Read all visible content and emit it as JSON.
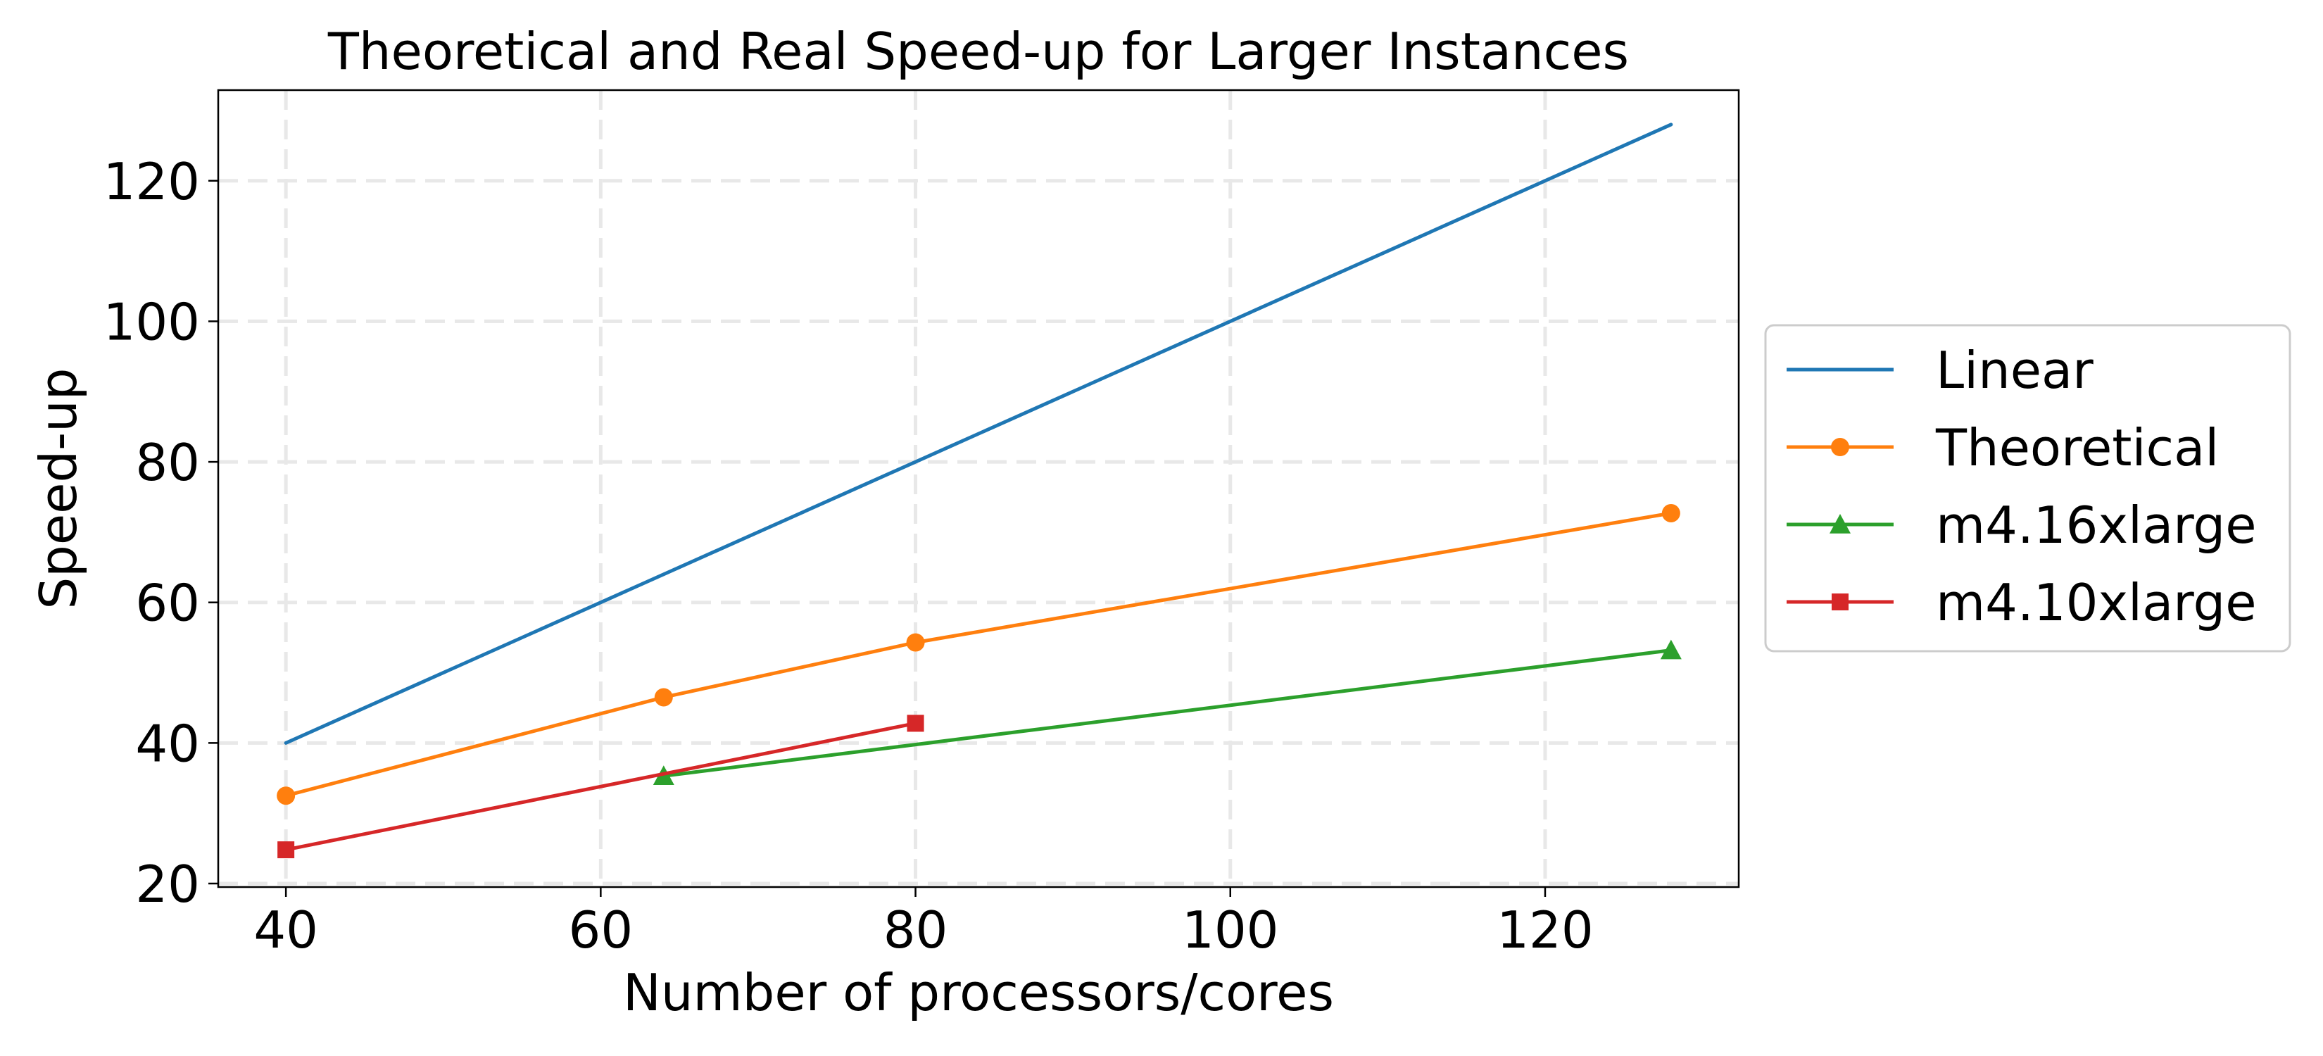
{
  "chart_data": {
    "type": "line",
    "title": "Theoretical and Real Speed-up for Larger Instances",
    "xlabel": "Number of processors/cores",
    "ylabel": "Speed-up",
    "xlim": [
      35.7,
      132.3
    ],
    "ylim": [
      19.5,
      132.9
    ],
    "xticks": [
      40,
      60,
      80,
      100,
      120
    ],
    "yticks": [
      20,
      40,
      60,
      80,
      100,
      120
    ],
    "grid": true,
    "legend_position": "right-outside",
    "series": [
      {
        "name": "Linear",
        "color": "#1f77b4",
        "marker": "none",
        "points": [
          [
            40,
            40
          ],
          [
            128,
            128
          ]
        ]
      },
      {
        "name": "Theoretical",
        "color": "#ff7f0e",
        "marker": "circle",
        "points": [
          [
            40,
            32.5
          ],
          [
            64,
            46.5
          ],
          [
            80,
            54.3
          ],
          [
            128,
            72.7
          ]
        ]
      },
      {
        "name": "m4.16xlarge",
        "color": "#2ca02c",
        "marker": "triangle",
        "points": [
          [
            64,
            35.3
          ],
          [
            128,
            53.2
          ]
        ]
      },
      {
        "name": "m4.10xlarge",
        "color": "#d62728",
        "marker": "square",
        "points": [
          [
            40,
            24.8
          ],
          [
            80,
            42.8
          ]
        ]
      }
    ]
  }
}
